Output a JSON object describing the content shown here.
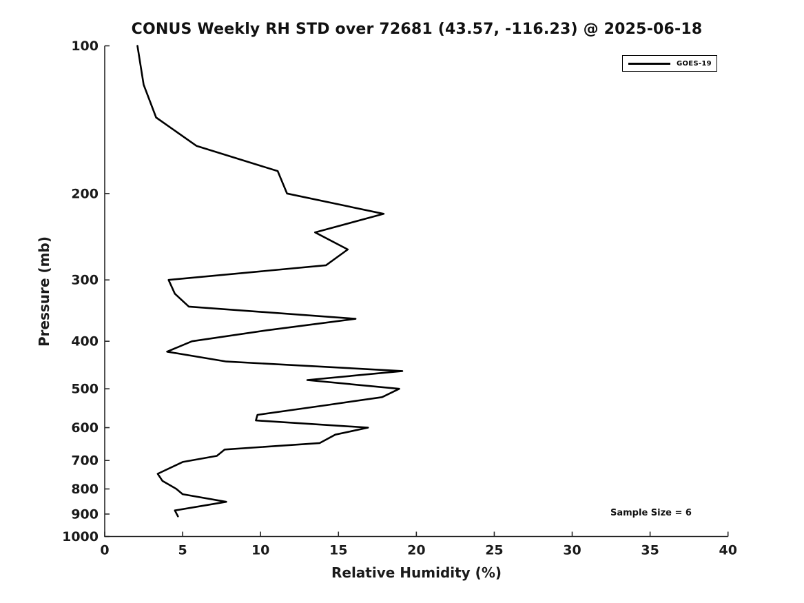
{
  "title": "CONUS Weekly RH STD over 72681 (43.57, -116.23) @ 2025-06-18",
  "legend": {
    "label": "GOES-19"
  },
  "annotation": "Sample Size = 6",
  "colors": {
    "background": "#ffffff",
    "line": "#000000",
    "axis": "#262626",
    "text": "#1a1a1a"
  },
  "chart_data": {
    "type": "line",
    "title": "CONUS Weekly RH STD over 72681 (43.57, -116.23) @ 2025-06-18",
    "xlabel": "Relative Humidity (%)",
    "ylabel": "Pressure (mb)",
    "xlim": [
      0,
      40
    ],
    "ylim": [
      100,
      1000
    ],
    "y_scale": "log",
    "y_inverted": true,
    "grid": false,
    "legend_position": "top-right",
    "x_ticks": [
      0,
      5,
      10,
      15,
      20,
      25,
      30,
      35,
      40
    ],
    "y_ticks": [
      100,
      200,
      300,
      400,
      500,
      600,
      700,
      800,
      900,
      1000
    ],
    "sample_size": 6,
    "series": [
      {
        "name": "GOES-19",
        "y_pressure_mb": [
          100,
          120,
          140,
          160,
          180,
          200,
          220,
          240,
          260,
          280,
          300,
          320,
          340,
          360,
          380,
          400,
          420,
          440,
          460,
          480,
          500,
          520,
          540,
          565,
          580,
          600,
          620,
          645,
          665,
          685,
          705,
          745,
          770,
          800,
          820,
          850,
          885,
          910
        ],
        "x_rh_percent": [
          2.1,
          2.5,
          3.3,
          5.9,
          11.1,
          11.7,
          17.9,
          13.5,
          15.6,
          14.2,
          4.1,
          4.5,
          5.4,
          16.1,
          10.4,
          5.6,
          4.0,
          7.8,
          19.1,
          13.0,
          18.9,
          17.8,
          14.2,
          9.8,
          9.7,
          16.9,
          14.8,
          13.8,
          7.7,
          7.2,
          5.0,
          3.4,
          3.7,
          4.6,
          5.0,
          7.8,
          4.5,
          4.7
        ]
      }
    ]
  }
}
